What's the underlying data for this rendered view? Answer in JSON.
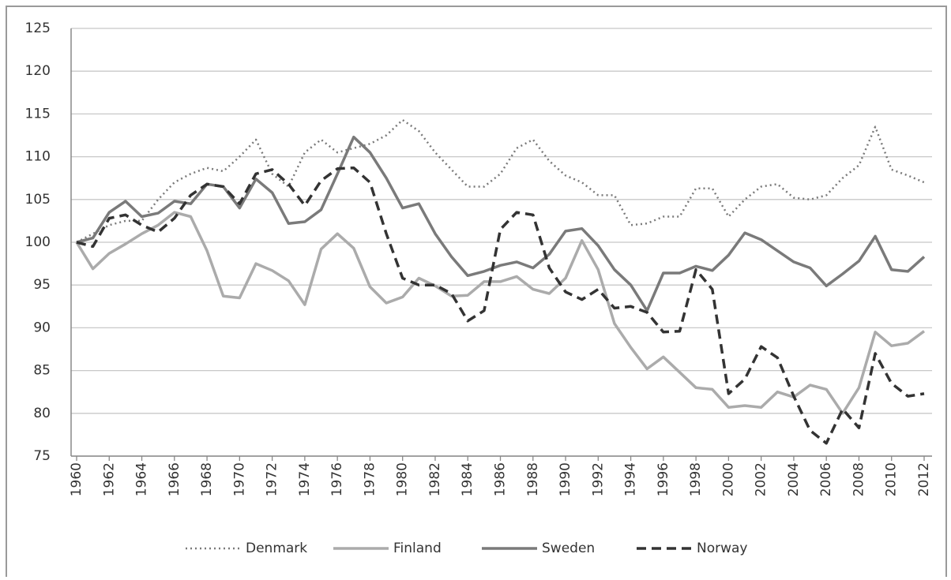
{
  "chart_data": {
    "type": "line",
    "x": [
      1960,
      1961,
      1962,
      1963,
      1964,
      1965,
      1966,
      1967,
      1968,
      1969,
      1970,
      1971,
      1972,
      1973,
      1974,
      1975,
      1976,
      1977,
      1978,
      1979,
      1980,
      1981,
      1982,
      1983,
      1984,
      1985,
      1986,
      1987,
      1988,
      1989,
      1990,
      1991,
      1992,
      1993,
      1994,
      1995,
      1996,
      1997,
      1998,
      1999,
      2000,
      2001,
      2002,
      2003,
      2004,
      2005,
      2006,
      2007,
      2008,
      2009,
      2010,
      2011,
      2012
    ],
    "xlim": [
      1960,
      2012
    ],
    "xticks": [
      1960,
      1962,
      1964,
      1966,
      1968,
      1970,
      1972,
      1974,
      1976,
      1978,
      1980,
      1982,
      1984,
      1986,
      1988,
      1990,
      1992,
      1994,
      1996,
      1998,
      2000,
      2002,
      2004,
      2006,
      2008,
      2010,
      2012
    ],
    "ylim": [
      75,
      125
    ],
    "yticks": [
      75,
      80,
      85,
      90,
      95,
      100,
      105,
      110,
      115,
      120,
      125
    ],
    "grid": true,
    "legend": "bottom",
    "series": [
      {
        "name": "Denmark",
        "color": "#7a7a7a",
        "dash": "dotted",
        "values": [
          100,
          101,
          102,
          102.5,
          102.5,
          105,
          107,
          108,
          108.7,
          108.3,
          110,
          112,
          108,
          106.5,
          110.5,
          112,
          110.5,
          111,
          111.5,
          112.5,
          114.3,
          113,
          110.5,
          108.5,
          106.5,
          106.5,
          108,
          111,
          112,
          109.5,
          107.8,
          107,
          105.5,
          105.5,
          102,
          102.2,
          103,
          103,
          106.3,
          106.3,
          103,
          105,
          106.5,
          106.8,
          105.2,
          105,
          105.5,
          107.5,
          109,
          113.5,
          108.5,
          107.8,
          107
        ]
      },
      {
        "name": "Finland",
        "color": "#ababab",
        "dash": "solid",
        "values": [
          100,
          96.9,
          98.7,
          99.8,
          101,
          102,
          103.5,
          103,
          99,
          93.7,
          93.5,
          97.5,
          96.7,
          95.5,
          92.7,
          99.2,
          101,
          99.3,
          94.8,
          92.9,
          93.6,
          95.8,
          94.9,
          93.7,
          93.8,
          95.4,
          95.4,
          96,
          94.5,
          94,
          95.8,
          100.2,
          96.8,
          90.5,
          87.7,
          85.2,
          86.6,
          84.8,
          83,
          82.8,
          80.7,
          80.9,
          80.7,
          82.5,
          81.9,
          83.3,
          82.8,
          80,
          83,
          89.5,
          87.9,
          88.2,
          89.6
        ]
      },
      {
        "name": "Sweden",
        "color": "#7a7a7a",
        "dash": "solid",
        "values": [
          100,
          100.5,
          103.5,
          104.8,
          103,
          103.4,
          104.8,
          104.5,
          106.8,
          106.5,
          104,
          107.4,
          105.8,
          102.2,
          102.4,
          103.8,
          108,
          112.3,
          110.5,
          107.5,
          104,
          104.5,
          101,
          98.3,
          96.1,
          96.6,
          97.3,
          97.7,
          97,
          98.6,
          101.3,
          101.6,
          99.6,
          96.8,
          95,
          92,
          96.4,
          96.4,
          97.2,
          96.7,
          98.5,
          101.1,
          100.3,
          99,
          97.7,
          97,
          94.9,
          96.3,
          97.8,
          100.7,
          96.8,
          96.6,
          98.3
        ]
      },
      {
        "name": "Norway",
        "color": "#333333",
        "dash": "dashed",
        "values": [
          100,
          99.5,
          102.8,
          103.2,
          102,
          101.2,
          102.8,
          105.5,
          106.8,
          106.5,
          104.5,
          108,
          108.5,
          106.8,
          104.3,
          107.2,
          108.6,
          108.7,
          107,
          101,
          95.8,
          95,
          95,
          94,
          90.8,
          92,
          101.5,
          103.5,
          103.2,
          97,
          94.2,
          93.3,
          94.5,
          92.3,
          92.5,
          91.8,
          89.5,
          89.6,
          96.8,
          94.5,
          82.3,
          84,
          87.8,
          86.5,
          82,
          78,
          76.5,
          80.5,
          78.3,
          87,
          83.5,
          82,
          82.3
        ]
      }
    ]
  }
}
